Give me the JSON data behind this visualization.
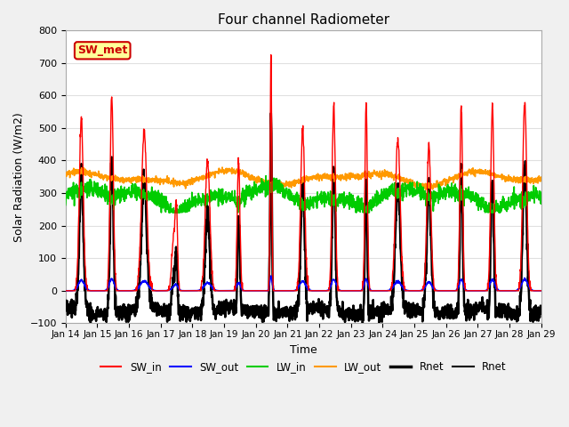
{
  "title": "Four channel Radiometer",
  "xlabel": "Time",
  "ylabel": "Solar Radiation (W/m2)",
  "ylim": [
    -100,
    800
  ],
  "xlim": [
    0,
    360
  ],
  "annotation_text": "SW_met",
  "annotation_box_color": "#FFFF99",
  "annotation_text_color": "#cc0000",
  "annotation_border_color": "#cc0000",
  "x_tick_labels": [
    "Jan 14",
    "Jan 15",
    "Jan 16",
    "Jan 17",
    "Jan 18",
    "Jan 19",
    "Jan 20",
    "Jan 21",
    "Jan 22",
    "Jan 23",
    "Jan 24",
    "Jan 25",
    "Jan 26",
    "Jan 27",
    "Jan 28",
    "Jan 29"
  ],
  "x_tick_positions": [
    0,
    24,
    48,
    72,
    96,
    120,
    144,
    168,
    192,
    216,
    240,
    264,
    288,
    312,
    336,
    360
  ],
  "background_color": "#f0f0f0",
  "plot_bg_color": "#ffffff",
  "grid_color": "#e0e0e0",
  "colors": {
    "SW_in": "#ff0000",
    "SW_out": "#0000ff",
    "LW_in": "#00cc00",
    "LW_out": "#ff9900",
    "Rnet_thick": "#000000",
    "Rnet_thin": "#000000"
  },
  "legend_labels": [
    "SW_in",
    "SW_out",
    "LW_in",
    "LW_out",
    "Rnet",
    "Rnet"
  ],
  "legend_colors": [
    "#ff0000",
    "#0000ff",
    "#00cc00",
    "#ff9900",
    "#000000",
    "#000000"
  ],
  "legend_linewidths": [
    1.5,
    1.5,
    1.5,
    1.5,
    2.5,
    1.5
  ]
}
